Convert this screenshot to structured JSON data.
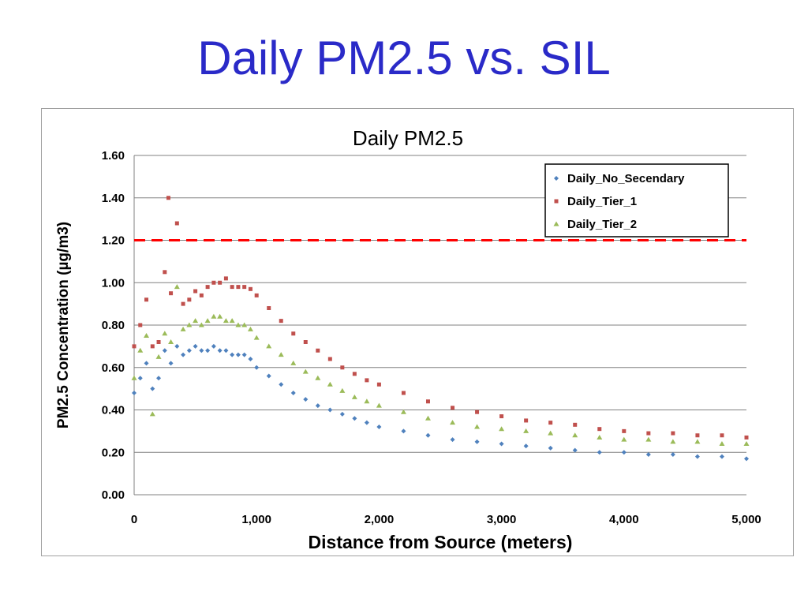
{
  "slide": {
    "title": "Daily PM2.5 vs. SIL"
  },
  "chart_data": {
    "type": "scatter",
    "title": "Daily PM2.5",
    "xlabel": "Distance from Source (meters)",
    "ylabel": "PM2.5 Concentration (µg/m3)",
    "xlim": [
      0,
      5000
    ],
    "ylim": [
      0,
      1.6
    ],
    "x_ticks": [
      0,
      1000,
      2000,
      3000,
      4000,
      5000
    ],
    "x_tick_labels": [
      "0",
      "1,000",
      "2,000",
      "3,000",
      "4,000",
      "5,000"
    ],
    "y_ticks": [
      0,
      0.2,
      0.4,
      0.6,
      0.8,
      1.0,
      1.2,
      1.4,
      1.6
    ],
    "y_tick_labels": [
      "0.00",
      "0.20",
      "0.40",
      "0.60",
      "0.80",
      "1.00",
      "1.20",
      "1.40",
      "1.60"
    ],
    "grid": "horizontal",
    "legend_position": "top-right",
    "reference_line": {
      "y": 1.2,
      "color": "#ff0000",
      "style": "dashed"
    },
    "series": [
      {
        "name": "Daily_No_Secendary",
        "color": "#4f81bd",
        "marker": "diamond",
        "points": [
          [
            0,
            0.48
          ],
          [
            50,
            0.55
          ],
          [
            100,
            0.62
          ],
          [
            150,
            0.5
          ],
          [
            200,
            0.55
          ],
          [
            250,
            0.68
          ],
          [
            300,
            0.62
          ],
          [
            350,
            0.7
          ],
          [
            400,
            0.66
          ],
          [
            450,
            0.68
          ],
          [
            500,
            0.7
          ],
          [
            550,
            0.68
          ],
          [
            600,
            0.68
          ],
          [
            650,
            0.7
          ],
          [
            700,
            0.68
          ],
          [
            750,
            0.68
          ],
          [
            800,
            0.66
          ],
          [
            850,
            0.66
          ],
          [
            900,
            0.66
          ],
          [
            950,
            0.64
          ],
          [
            1000,
            0.6
          ],
          [
            1100,
            0.56
          ],
          [
            1200,
            0.52
          ],
          [
            1300,
            0.48
          ],
          [
            1400,
            0.45
          ],
          [
            1500,
            0.42
          ],
          [
            1600,
            0.4
          ],
          [
            1700,
            0.38
          ],
          [
            1800,
            0.36
          ],
          [
            1900,
            0.34
          ],
          [
            2000,
            0.32
          ],
          [
            2200,
            0.3
          ],
          [
            2400,
            0.28
          ],
          [
            2600,
            0.26
          ],
          [
            2800,
            0.25
          ],
          [
            3000,
            0.24
          ],
          [
            3200,
            0.23
          ],
          [
            3400,
            0.22
          ],
          [
            3600,
            0.21
          ],
          [
            3800,
            0.2
          ],
          [
            4000,
            0.2
          ],
          [
            4200,
            0.19
          ],
          [
            4400,
            0.19
          ],
          [
            4600,
            0.18
          ],
          [
            4800,
            0.18
          ],
          [
            5000,
            0.17
          ]
        ]
      },
      {
        "name": "Daily_Tier_1",
        "color": "#c0504d",
        "marker": "square",
        "points": [
          [
            0,
            0.7
          ],
          [
            50,
            0.8
          ],
          [
            100,
            0.92
          ],
          [
            150,
            0.7
          ],
          [
            200,
            0.72
          ],
          [
            250,
            1.05
          ],
          [
            280,
            1.4
          ],
          [
            300,
            0.95
          ],
          [
            350,
            1.28
          ],
          [
            400,
            0.9
          ],
          [
            450,
            0.92
          ],
          [
            500,
            0.96
          ],
          [
            550,
            0.94
          ],
          [
            600,
            0.98
          ],
          [
            650,
            1.0
          ],
          [
            700,
            1.0
          ],
          [
            750,
            1.02
          ],
          [
            800,
            0.98
          ],
          [
            850,
            0.98
          ],
          [
            900,
            0.98
          ],
          [
            950,
            0.97
          ],
          [
            1000,
            0.94
          ],
          [
            1100,
            0.88
          ],
          [
            1200,
            0.82
          ],
          [
            1300,
            0.76
          ],
          [
            1400,
            0.72
          ],
          [
            1500,
            0.68
          ],
          [
            1600,
            0.64
          ],
          [
            1700,
            0.6
          ],
          [
            1800,
            0.57
          ],
          [
            1900,
            0.54
          ],
          [
            2000,
            0.52
          ],
          [
            2200,
            0.48
          ],
          [
            2400,
            0.44
          ],
          [
            2600,
            0.41
          ],
          [
            2800,
            0.39
          ],
          [
            3000,
            0.37
          ],
          [
            3200,
            0.35
          ],
          [
            3400,
            0.34
          ],
          [
            3600,
            0.33
          ],
          [
            3800,
            0.31
          ],
          [
            4000,
            0.3
          ],
          [
            4200,
            0.29
          ],
          [
            4400,
            0.29
          ],
          [
            4600,
            0.28
          ],
          [
            4800,
            0.28
          ],
          [
            5000,
            0.27
          ]
        ]
      },
      {
        "name": "Daily_Tier_2",
        "color": "#9bbb59",
        "marker": "triangle",
        "points": [
          [
            0,
            0.55
          ],
          [
            50,
            0.68
          ],
          [
            100,
            0.75
          ],
          [
            150,
            0.38
          ],
          [
            200,
            0.65
          ],
          [
            250,
            0.76
          ],
          [
            300,
            0.72
          ],
          [
            350,
            0.98
          ],
          [
            400,
            0.78
          ],
          [
            450,
            0.8
          ],
          [
            500,
            0.82
          ],
          [
            550,
            0.8
          ],
          [
            600,
            0.82
          ],
          [
            650,
            0.84
          ],
          [
            700,
            0.84
          ],
          [
            750,
            0.82
          ],
          [
            800,
            0.82
          ],
          [
            850,
            0.8
          ],
          [
            900,
            0.8
          ],
          [
            950,
            0.78
          ],
          [
            1000,
            0.74
          ],
          [
            1100,
            0.7
          ],
          [
            1200,
            0.66
          ],
          [
            1300,
            0.62
          ],
          [
            1400,
            0.58
          ],
          [
            1500,
            0.55
          ],
          [
            1600,
            0.52
          ],
          [
            1700,
            0.49
          ],
          [
            1800,
            0.46
          ],
          [
            1900,
            0.44
          ],
          [
            2000,
            0.42
          ],
          [
            2200,
            0.39
          ],
          [
            2400,
            0.36
          ],
          [
            2600,
            0.34
          ],
          [
            2800,
            0.32
          ],
          [
            3000,
            0.31
          ],
          [
            3200,
            0.3
          ],
          [
            3400,
            0.29
          ],
          [
            3600,
            0.28
          ],
          [
            3800,
            0.27
          ],
          [
            4000,
            0.26
          ],
          [
            4200,
            0.26
          ],
          [
            4400,
            0.25
          ],
          [
            4600,
            0.25
          ],
          [
            4800,
            0.24
          ],
          [
            5000,
            0.24
          ]
        ]
      }
    ]
  }
}
